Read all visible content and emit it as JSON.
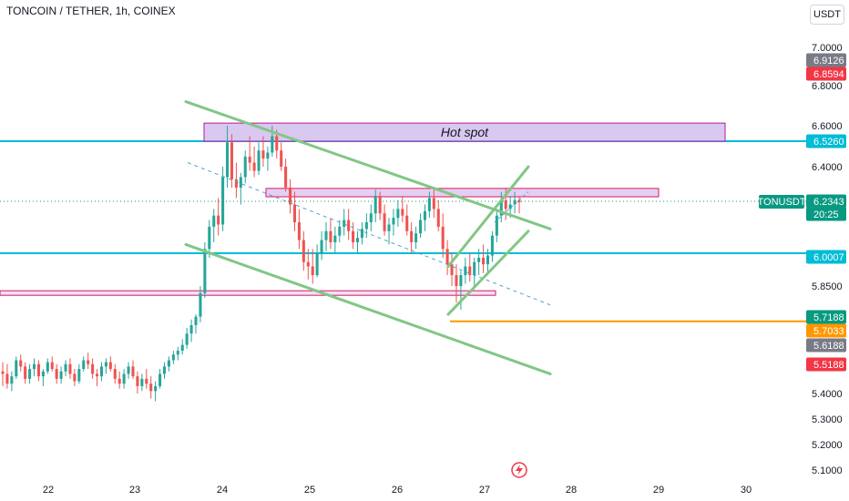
{
  "header": {
    "title": "TONCOIN / TETHER, 1h, COINEX",
    "currency": "USDT"
  },
  "chart_data": {
    "type": "candlestick",
    "symbol": "TONCOIN / TETHER",
    "interval": "1h",
    "exchange": "COINEX",
    "xlabel": "",
    "ylabel": "",
    "x_ticks": [
      "22",
      "23",
      "24",
      "25",
      "26",
      "27",
      "28",
      "29",
      "30"
    ],
    "y_ticks": [
      "7.0000",
      "6.8000",
      "6.6000",
      "6.4000",
      "5.8500",
      "5.4000",
      "5.3000",
      "5.2000",
      "5.1000"
    ],
    "ylim": [
      5.08,
      7.1
    ],
    "grid": false,
    "colors": {
      "up": "#26a69a",
      "down": "#ef5350",
      "channel": "#81c784",
      "hline": "#00bcd4",
      "zone": "#c39bd3",
      "support": "#ff9800"
    },
    "price_labels": [
      {
        "text": "6.9126",
        "color": "#787b86"
      },
      {
        "text": "6.8594",
        "color": "#f23645"
      },
      {
        "text": "6.5260",
        "color": "#00bcd4"
      },
      {
        "text": "6.2343",
        "color": "#089981"
      },
      {
        "text": "20:25",
        "color": "#089981"
      },
      {
        "text": "6.0007",
        "color": "#00bcd4"
      },
      {
        "text": "5.7188",
        "color": "#089981"
      },
      {
        "text": "5.7033",
        "color": "#ff9800"
      },
      {
        "text": "5.6188",
        "color": "#787b86"
      },
      {
        "text": "5.5188",
        "color": "#f23645"
      }
    ],
    "symbol_tag": "TONUSDT",
    "annotations": [
      {
        "text": "Hot spot",
        "type": "zone",
        "y_range": [
          6.526,
          6.613
        ]
      }
    ],
    "horizontal_lines": [
      6.526,
      6.0007,
      5.7033
    ],
    "zones": [
      {
        "y_range": [
          6.526,
          6.613
        ]
      },
      {
        "y_range": [
          6.256,
          6.296
        ]
      },
      {
        "y_range": [
          5.815,
          5.83
        ]
      }
    ],
    "candles": [
      [
        5.49,
        5.53,
        5.43,
        5.48
      ],
      [
        5.48,
        5.52,
        5.42,
        5.44
      ],
      [
        5.44,
        5.49,
        5.41,
        5.47
      ],
      [
        5.47,
        5.56,
        5.46,
        5.54
      ],
      [
        5.54,
        5.57,
        5.49,
        5.51
      ],
      [
        5.51,
        5.53,
        5.44,
        5.46
      ],
      [
        5.46,
        5.52,
        5.44,
        5.5
      ],
      [
        5.5,
        5.55,
        5.47,
        5.52
      ],
      [
        5.52,
        5.54,
        5.45,
        5.47
      ],
      [
        5.47,
        5.5,
        5.43,
        5.49
      ],
      [
        5.49,
        5.55,
        5.48,
        5.53
      ],
      [
        5.53,
        5.56,
        5.49,
        5.5
      ],
      [
        5.5,
        5.52,
        5.44,
        5.46
      ],
      [
        5.46,
        5.51,
        5.44,
        5.49
      ],
      [
        5.49,
        5.54,
        5.47,
        5.52
      ],
      [
        5.52,
        5.55,
        5.46,
        5.48
      ],
      [
        5.48,
        5.5,
        5.43,
        5.45
      ],
      [
        5.45,
        5.52,
        5.44,
        5.5
      ],
      [
        5.5,
        5.56,
        5.49,
        5.54
      ],
      [
        5.54,
        5.58,
        5.5,
        5.52
      ],
      [
        5.52,
        5.55,
        5.46,
        5.48
      ],
      [
        5.48,
        5.5,
        5.43,
        5.47
      ],
      [
        5.47,
        5.53,
        5.45,
        5.51
      ],
      [
        5.51,
        5.55,
        5.48,
        5.53
      ],
      [
        5.53,
        5.56,
        5.49,
        5.5
      ],
      [
        5.5,
        5.52,
        5.44,
        5.46
      ],
      [
        5.46,
        5.49,
        5.42,
        5.44
      ],
      [
        5.44,
        5.5,
        5.42,
        5.48
      ],
      [
        5.48,
        5.53,
        5.46,
        5.51
      ],
      [
        5.51,
        5.54,
        5.46,
        5.47
      ],
      [
        5.47,
        5.49,
        5.4,
        5.43
      ],
      [
        5.43,
        5.48,
        5.41,
        5.46
      ],
      [
        5.46,
        5.5,
        5.42,
        5.44
      ],
      [
        5.44,
        5.47,
        5.38,
        5.41
      ],
      [
        5.41,
        5.45,
        5.37,
        5.43
      ],
      [
        5.43,
        5.5,
        5.42,
        5.48
      ],
      [
        5.48,
        5.53,
        5.46,
        5.51
      ],
      [
        5.51,
        5.56,
        5.49,
        5.54
      ],
      [
        5.54,
        5.59,
        5.52,
        5.57
      ],
      [
        5.57,
        5.61,
        5.54,
        5.59
      ],
      [
        5.59,
        5.64,
        5.57,
        5.62
      ],
      [
        5.62,
        5.68,
        5.6,
        5.66
      ],
      [
        5.66,
        5.71,
        5.63,
        5.69
      ],
      [
        5.69,
        5.73,
        5.66,
        5.72
      ],
      [
        5.72,
        5.85,
        5.7,
        5.82
      ],
      [
        5.82,
        6.05,
        5.8,
        6.02
      ],
      [
        6.02,
        6.15,
        5.98,
        6.12
      ],
      [
        6.12,
        6.2,
        6.05,
        6.17
      ],
      [
        6.17,
        6.25,
        6.08,
        6.13
      ],
      [
        6.13,
        6.4,
        6.1,
        6.35
      ],
      [
        6.35,
        6.6,
        6.3,
        6.52
      ],
      [
        6.52,
        6.56,
        6.3,
        6.34
      ],
      [
        6.34,
        6.42,
        6.25,
        6.3
      ],
      [
        6.3,
        6.37,
        6.22,
        6.35
      ],
      [
        6.35,
        6.48,
        6.32,
        6.45
      ],
      [
        6.45,
        6.55,
        6.38,
        6.42
      ],
      [
        6.42,
        6.5,
        6.35,
        6.38
      ],
      [
        6.38,
        6.52,
        6.36,
        6.48
      ],
      [
        6.48,
        6.55,
        6.4,
        6.44
      ],
      [
        6.44,
        6.5,
        6.38,
        6.47
      ],
      [
        6.47,
        6.6,
        6.45,
        6.55
      ],
      [
        6.55,
        6.58,
        6.44,
        6.48
      ],
      [
        6.48,
        6.52,
        6.38,
        6.4
      ],
      [
        6.4,
        6.44,
        6.28,
        6.3
      ],
      [
        6.3,
        6.34,
        6.18,
        6.22
      ],
      [
        6.22,
        6.28,
        6.1,
        6.14
      ],
      [
        6.14,
        6.2,
        6.02,
        6.06
      ],
      [
        6.06,
        6.1,
        5.92,
        5.96
      ],
      [
        5.96,
        6.02,
        5.88,
        5.94
      ],
      [
        5.94,
        6.02,
        5.86,
        5.9
      ],
      [
        5.9,
        6.04,
        5.89,
        6.0
      ],
      [
        6.0,
        6.1,
        5.97,
        6.06
      ],
      [
        6.06,
        6.14,
        6.01,
        6.1
      ],
      [
        6.1,
        6.16,
        6.02,
        6.05
      ],
      [
        6.05,
        6.12,
        6.0,
        6.08
      ],
      [
        6.08,
        6.15,
        6.05,
        6.12
      ],
      [
        6.12,
        6.2,
        6.08,
        6.15
      ],
      [
        6.15,
        6.2,
        6.06,
        6.1
      ],
      [
        6.1,
        6.14,
        6.02,
        6.05
      ],
      [
        6.05,
        6.1,
        6.0,
        6.07
      ],
      [
        6.07,
        6.14,
        6.04,
        6.11
      ],
      [
        6.11,
        6.18,
        6.07,
        6.14
      ],
      [
        6.14,
        6.22,
        6.1,
        6.18
      ],
      [
        6.18,
        6.29,
        6.14,
        6.26
      ],
      [
        6.26,
        6.28,
        6.15,
        6.18
      ],
      [
        6.18,
        6.22,
        6.08,
        6.1
      ],
      [
        6.1,
        6.16,
        6.04,
        6.13
      ],
      [
        6.13,
        6.2,
        6.08,
        6.16
      ],
      [
        6.16,
        6.24,
        6.12,
        6.2
      ],
      [
        6.2,
        6.26,
        6.14,
        6.17
      ],
      [
        6.17,
        6.22,
        6.08,
        6.1
      ],
      [
        6.1,
        6.14,
        6.0,
        6.05
      ],
      [
        6.05,
        6.12,
        6.02,
        6.09
      ],
      [
        6.09,
        6.18,
        6.07,
        6.15
      ],
      [
        6.15,
        6.22,
        6.1,
        6.19
      ],
      [
        6.19,
        6.28,
        6.16,
        6.25
      ],
      [
        6.25,
        6.3,
        6.16,
        6.2
      ],
      [
        6.2,
        6.24,
        6.1,
        6.12
      ],
      [
        6.12,
        6.18,
        5.98,
        6.02
      ],
      [
        6.02,
        6.06,
        5.9,
        5.95
      ],
      [
        5.95,
        6.0,
        5.85,
        5.9
      ],
      [
        5.9,
        5.95,
        5.78,
        5.85
      ],
      [
        5.85,
        5.92,
        5.75,
        5.9
      ],
      [
        5.9,
        5.98,
        5.86,
        5.94
      ],
      [
        5.94,
        6.0,
        5.87,
        5.9
      ],
      [
        5.9,
        5.98,
        5.84,
        5.96
      ],
      [
        5.96,
        6.02,
        5.9,
        5.98
      ],
      [
        5.98,
        6.04,
        5.91,
        5.95
      ],
      [
        5.95,
        6.02,
        5.9,
        5.99
      ],
      [
        5.99,
        6.1,
        5.96,
        6.08
      ],
      [
        6.08,
        6.2,
        6.05,
        6.17
      ],
      [
        6.17,
        6.28,
        6.14,
        6.24
      ],
      [
        6.24,
        6.3,
        6.15,
        6.2
      ],
      [
        6.2,
        6.26,
        6.16,
        6.22
      ],
      [
        6.22,
        6.28,
        6.18,
        6.24
      ],
      [
        6.24,
        6.26,
        6.18,
        6.23
      ]
    ]
  }
}
